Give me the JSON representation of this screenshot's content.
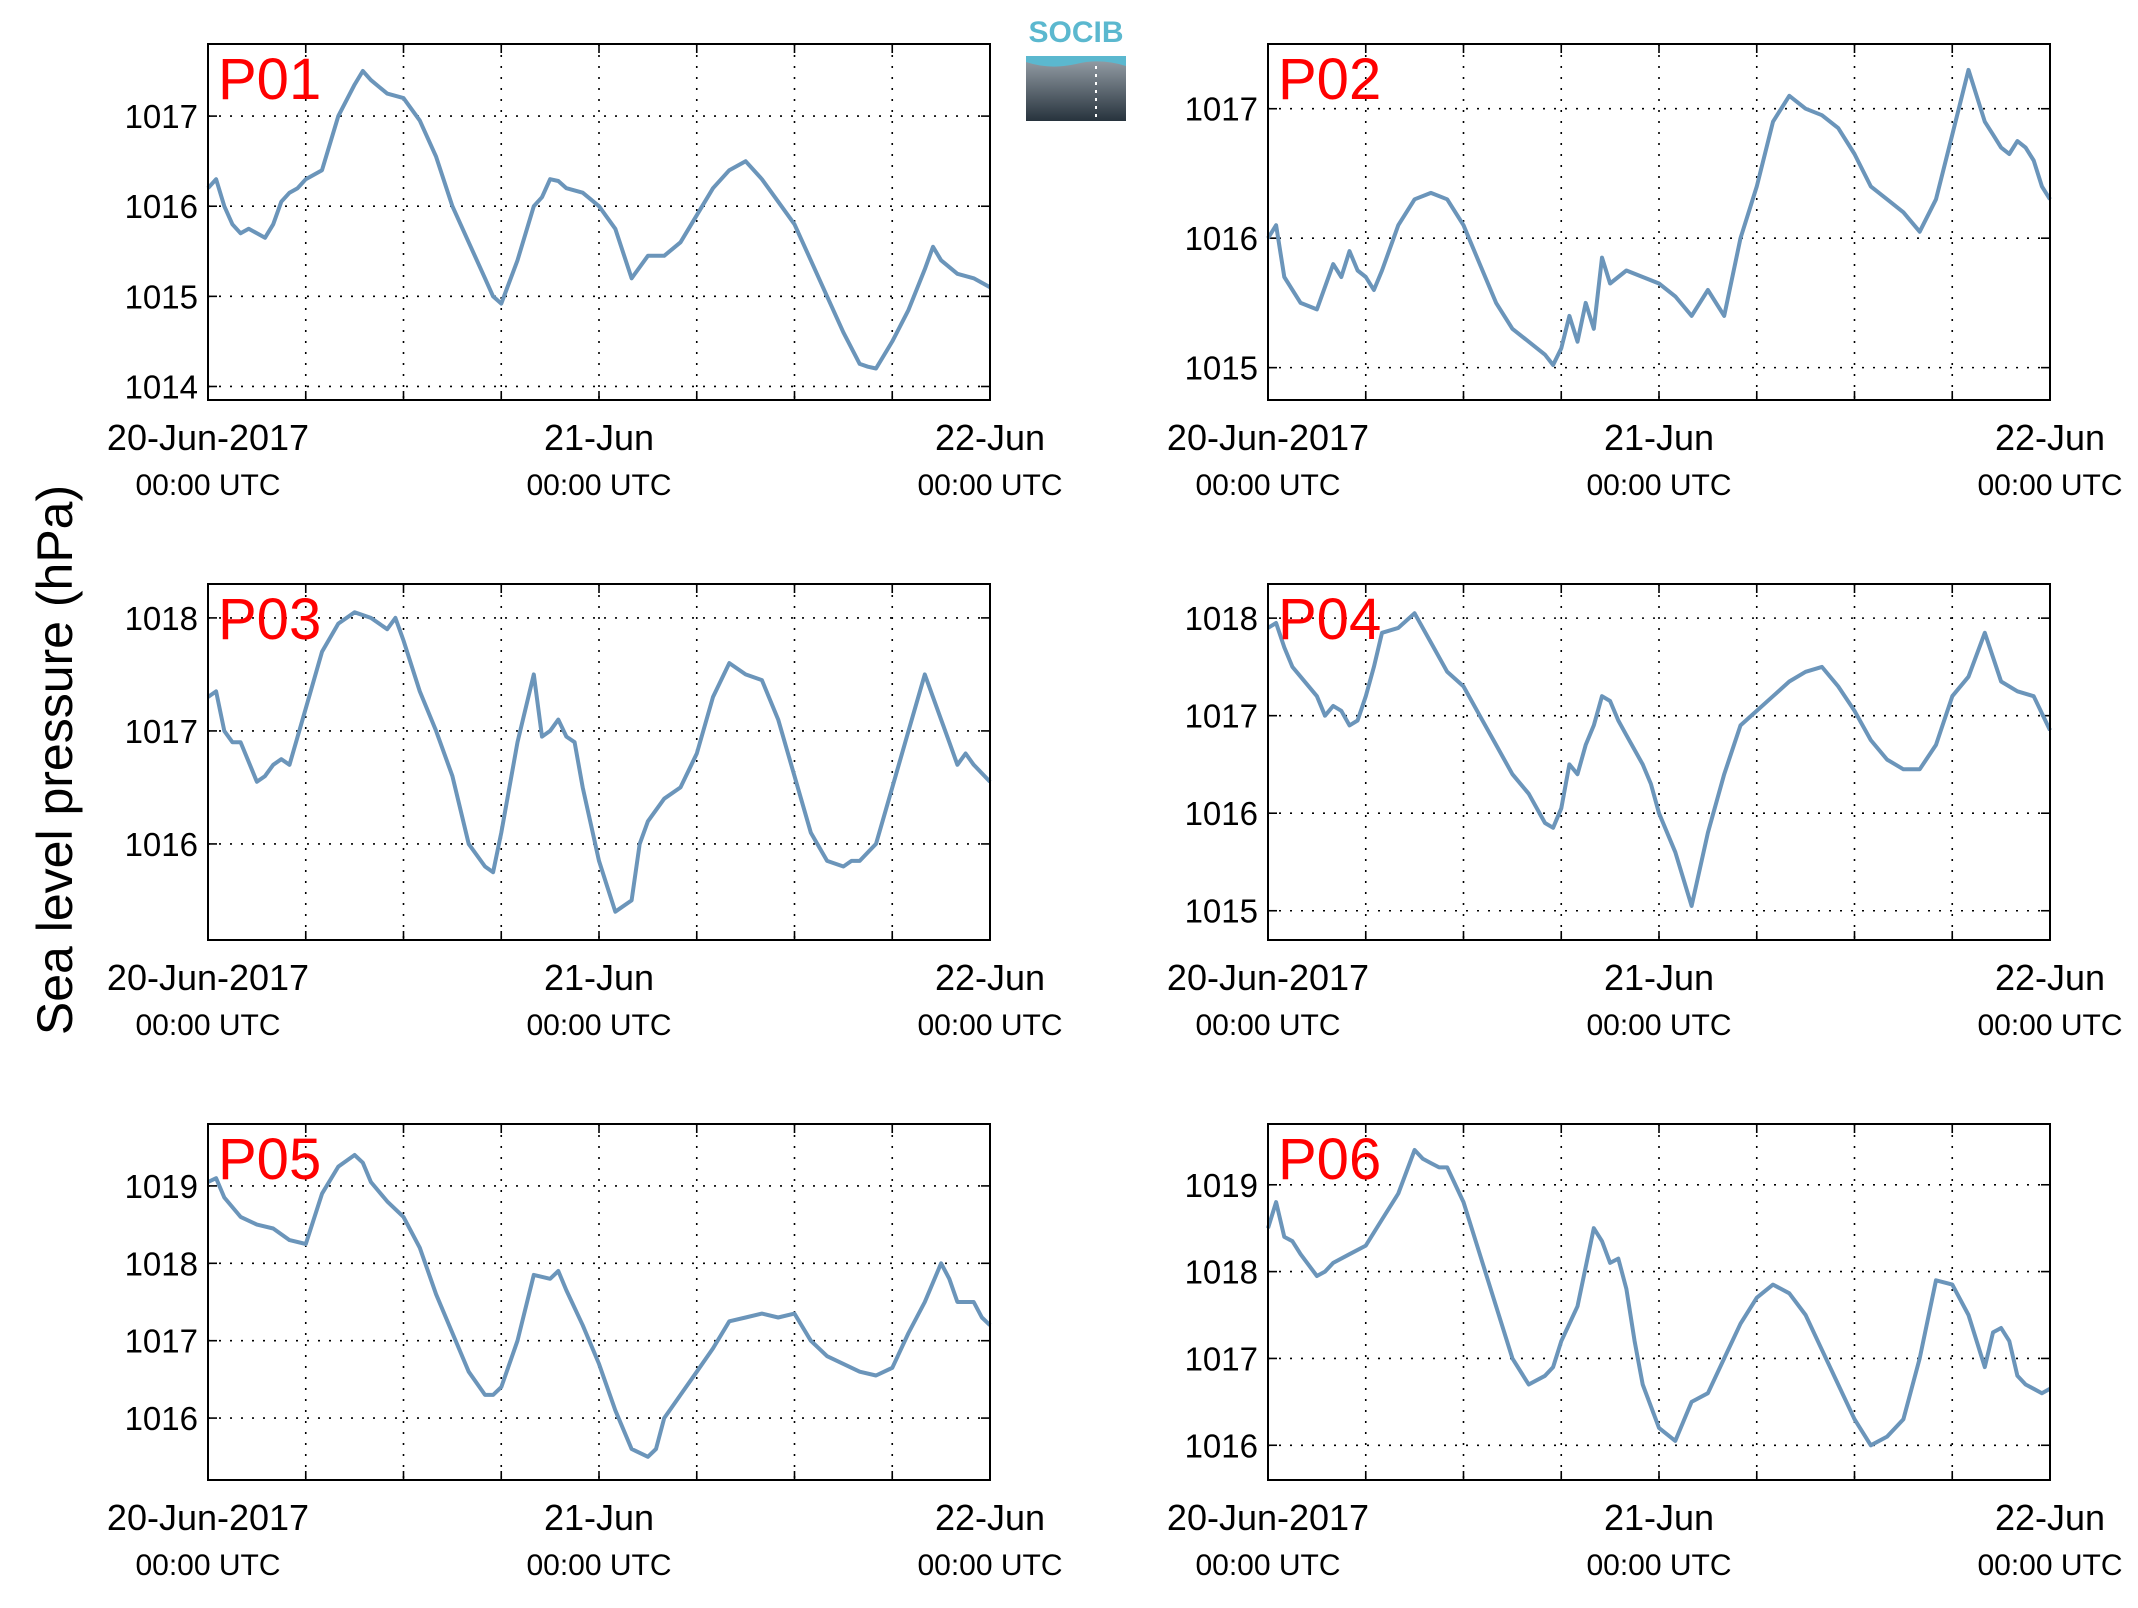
{
  "figure": {
    "ylabel": "Sea level pressure (hPa)",
    "logo_text": "SOCIB"
  },
  "colors": {
    "line": "#6b95ba",
    "panel_label": "#ff0000",
    "grid": "#000000"
  },
  "chart_data": [
    {
      "type": "line",
      "panel_label": "P01",
      "x_unit": "hours since 20-Jun-2017 00:00 UTC",
      "xlim": [
        0,
        48
      ],
      "ylim": [
        1013.85,
        1017.8
      ],
      "yticks": [
        1014,
        1015,
        1016,
        1017
      ],
      "ytick_labels": [
        "1014",
        "1015",
        "1016",
        "1017"
      ],
      "xtick_labels": [
        {
          "date": "20-Jun-2017",
          "time": "00:00 UTC"
        },
        {
          "date": "21-Jun",
          "time": "00:00 UTC"
        },
        {
          "date": "22-Jun",
          "time": "00:00 UTC"
        }
      ],
      "x": [
        0,
        0.5,
        1,
        1.5,
        2,
        2.5,
        3,
        3.5,
        4,
        4.5,
        5,
        5.5,
        6,
        7,
        8,
        9,
        9.5,
        10,
        11,
        12,
        13,
        14,
        15,
        16,
        17,
        17.5,
        18,
        19,
        20,
        20.5,
        21,
        21.5,
        22,
        23,
        24,
        25,
        26,
        27,
        28,
        29,
        30,
        31,
        32,
        33,
        34,
        35,
        36,
        37,
        38,
        39,
        40,
        40.5,
        41,
        42,
        43,
        44,
        44.5,
        45,
        46,
        47,
        48
      ],
      "y": [
        1016.2,
        1016.3,
        1016.0,
        1015.8,
        1015.7,
        1015.75,
        1015.7,
        1015.65,
        1015.8,
        1016.05,
        1016.15,
        1016.2,
        1016.3,
        1016.4,
        1017.0,
        1017.35,
        1017.5,
        1017.4,
        1017.25,
        1017.2,
        1016.95,
        1016.55,
        1016.0,
        1015.6,
        1015.2,
        1015.0,
        1014.92,
        1015.4,
        1016.0,
        1016.1,
        1016.3,
        1016.28,
        1016.2,
        1016.15,
        1016.0,
        1015.75,
        1015.2,
        1015.45,
        1015.45,
        1015.6,
        1015.9,
        1016.2,
        1016.4,
        1016.5,
        1016.3,
        1016.05,
        1015.8,
        1015.4,
        1015.0,
        1014.6,
        1014.25,
        1014.22,
        1014.2,
        1014.5,
        1014.85,
        1015.3,
        1015.55,
        1015.4,
        1015.25,
        1015.2,
        1015.1
      ]
    },
    {
      "type": "line",
      "panel_label": "P02",
      "x_unit": "hours since 20-Jun-2017 00:00 UTC",
      "xlim": [
        0,
        48
      ],
      "ylim": [
        1014.75,
        1017.5
      ],
      "yticks": [
        1015,
        1016,
        1017
      ],
      "ytick_labels": [
        "1015",
        "1016",
        "1017"
      ],
      "xtick_labels": [
        {
          "date": "20-Jun-2017",
          "time": "00:00 UTC"
        },
        {
          "date": "21-Jun",
          "time": "00:00 UTC"
        },
        {
          "date": "22-Jun",
          "time": "00:00 UTC"
        }
      ],
      "x": [
        0,
        0.5,
        1,
        2,
        3,
        4,
        4.5,
        5,
        5.5,
        6,
        6.5,
        7,
        8,
        9,
        10,
        11,
        12,
        13,
        14,
        15,
        16,
        17,
        17.5,
        18,
        18.5,
        19,
        19.5,
        20,
        20.5,
        21,
        22,
        23,
        24,
        25,
        26,
        27,
        28,
        29,
        30,
        31,
        32,
        33,
        34,
        35,
        36,
        37,
        38,
        39,
        40,
        41,
        42,
        43,
        44,
        44.5,
        45,
        45.5,
        46,
        46.5,
        47,
        47.5,
        48
      ],
      "y": [
        1016.0,
        1016.1,
        1015.7,
        1015.5,
        1015.45,
        1015.8,
        1015.7,
        1015.9,
        1015.75,
        1015.7,
        1015.6,
        1015.75,
        1016.1,
        1016.3,
        1016.35,
        1016.3,
        1016.1,
        1015.8,
        1015.5,
        1015.3,
        1015.2,
        1015.1,
        1015.02,
        1015.15,
        1015.4,
        1015.2,
        1015.5,
        1015.3,
        1015.85,
        1015.65,
        1015.75,
        1015.7,
        1015.65,
        1015.55,
        1015.4,
        1015.6,
        1015.4,
        1016.0,
        1016.4,
        1016.9,
        1017.1,
        1017.0,
        1016.95,
        1016.85,
        1016.65,
        1016.4,
        1016.3,
        1016.2,
        1016.05,
        1016.3,
        1016.8,
        1017.3,
        1016.9,
        1016.8,
        1016.7,
        1016.65,
        1016.75,
        1016.7,
        1016.6,
        1016.4,
        1016.3
      ]
    },
    {
      "type": "line",
      "panel_label": "P03",
      "x_unit": "hours since 20-Jun-2017 00:00 UTC",
      "xlim": [
        0,
        48
      ],
      "ylim": [
        1015.15,
        1018.3
      ],
      "yticks": [
        1016,
        1017,
        1018
      ],
      "ytick_labels": [
        "1016",
        "1017",
        "1018"
      ],
      "xtick_labels": [
        {
          "date": "20-Jun-2017",
          "time": "00:00 UTC"
        },
        {
          "date": "21-Jun",
          "time": "00:00 UTC"
        },
        {
          "date": "22-Jun",
          "time": "00:00 UTC"
        }
      ],
      "x": [
        0,
        0.5,
        1,
        1.5,
        2,
        3,
        3.5,
        4,
        4.5,
        5,
        6,
        7,
        8,
        9,
        10,
        11,
        11.5,
        12,
        13,
        14,
        15,
        16,
        17,
        17.5,
        18,
        19,
        20,
        20.5,
        21,
        21.5,
        22,
        22.5,
        23,
        24,
        25,
        26,
        26.5,
        27,
        28,
        29,
        30,
        31,
        32,
        33,
        34,
        35,
        36,
        37,
        38,
        39,
        39.5,
        40,
        41,
        42,
        43,
        44,
        45,
        45.5,
        46,
        46.5,
        47,
        48
      ],
      "y": [
        1017.3,
        1017.35,
        1017.0,
        1016.9,
        1016.9,
        1016.55,
        1016.6,
        1016.7,
        1016.75,
        1016.7,
        1017.2,
        1017.7,
        1017.95,
        1018.05,
        1018.0,
        1017.9,
        1018.0,
        1017.8,
        1017.35,
        1017.0,
        1016.6,
        1016.0,
        1015.8,
        1015.75,
        1016.1,
        1016.9,
        1017.5,
        1016.95,
        1017.0,
        1017.1,
        1016.95,
        1016.9,
        1016.5,
        1015.85,
        1015.4,
        1015.5,
        1016.0,
        1016.2,
        1016.4,
        1016.5,
        1016.8,
        1017.3,
        1017.6,
        1017.5,
        1017.45,
        1017.1,
        1016.6,
        1016.1,
        1015.85,
        1015.8,
        1015.85,
        1015.85,
        1016.0,
        1016.5,
        1017.0,
        1017.5,
        1017.1,
        1016.9,
        1016.7,
        1016.8,
        1016.7,
        1016.55
      ]
    },
    {
      "type": "line",
      "panel_label": "P04",
      "x_unit": "hours since 20-Jun-2017 00:00 UTC",
      "xlim": [
        0,
        48
      ],
      "ylim": [
        1014.7,
        1018.35
      ],
      "yticks": [
        1015,
        1016,
        1017,
        1018
      ],
      "ytick_labels": [
        "1015",
        "1016",
        "1017",
        "1018"
      ],
      "xtick_labels": [
        {
          "date": "20-Jun-2017",
          "time": "00:00 UTC"
        },
        {
          "date": "21-Jun",
          "time": "00:00 UTC"
        },
        {
          "date": "22-Jun",
          "time": "00:00 UTC"
        }
      ],
      "x": [
        0,
        0.5,
        1,
        1.5,
        2,
        3,
        3.5,
        4,
        4.5,
        5,
        5.5,
        6,
        6.5,
        7,
        8,
        9,
        10,
        11,
        12,
        13,
        14,
        15,
        16,
        17,
        17.5,
        18,
        18.5,
        19,
        19.5,
        20,
        20.5,
        21,
        21.5,
        22,
        23,
        23.5,
        24,
        25,
        26,
        27,
        28,
        29,
        30,
        31,
        32,
        33,
        34,
        35,
        36,
        37,
        38,
        39,
        40,
        41,
        42,
        43,
        44,
        44.5,
        45,
        46,
        47,
        48
      ],
      "y": [
        1017.9,
        1017.95,
        1017.7,
        1017.5,
        1017.4,
        1017.2,
        1017.0,
        1017.1,
        1017.05,
        1016.9,
        1016.95,
        1017.2,
        1017.5,
        1017.85,
        1017.9,
        1018.05,
        1017.75,
        1017.45,
        1017.3,
        1017.0,
        1016.7,
        1016.4,
        1016.2,
        1015.9,
        1015.85,
        1016.05,
        1016.5,
        1016.4,
        1016.7,
        1016.9,
        1017.2,
        1017.15,
        1016.95,
        1016.8,
        1016.5,
        1016.3,
        1016.0,
        1015.6,
        1015.05,
        1015.8,
        1016.4,
        1016.9,
        1017.05,
        1017.2,
        1017.35,
        1017.45,
        1017.5,
        1017.3,
        1017.05,
        1016.75,
        1016.55,
        1016.45,
        1016.45,
        1016.7,
        1017.2,
        1017.4,
        1017.85,
        1017.6,
        1017.35,
        1017.25,
        1017.2,
        1016.85
      ]
    },
    {
      "type": "line",
      "panel_label": "P05",
      "x_unit": "hours since 20-Jun-2017 00:00 UTC",
      "xlim": [
        0,
        48
      ],
      "ylim": [
        1015.2,
        1019.8
      ],
      "yticks": [
        1016,
        1017,
        1018,
        1019
      ],
      "ytick_labels": [
        "1016",
        "1017",
        "1018",
        "1019"
      ],
      "xtick_labels": [
        {
          "date": "20-Jun-2017",
          "time": "00:00 UTC"
        },
        {
          "date": "21-Jun",
          "time": "00:00 UTC"
        },
        {
          "date": "22-Jun",
          "time": "00:00 UTC"
        }
      ],
      "x": [
        0,
        0.5,
        1,
        2,
        3,
        4,
        5,
        6,
        7,
        8,
        9,
        9.5,
        10,
        11,
        12,
        13,
        14,
        15,
        16,
        17,
        17.5,
        18,
        19,
        20,
        21,
        21.5,
        22,
        23,
        24,
        25,
        26,
        27,
        27.5,
        28,
        29,
        30,
        31,
        32,
        33,
        34,
        35,
        36,
        37,
        38,
        39,
        40,
        41,
        42,
        43,
        44,
        45,
        45.5,
        46,
        47,
        47.5,
        48
      ],
      "y": [
        1019.05,
        1019.1,
        1018.85,
        1018.6,
        1018.5,
        1018.45,
        1018.3,
        1018.25,
        1018.9,
        1019.25,
        1019.4,
        1019.3,
        1019.05,
        1018.8,
        1018.6,
        1018.2,
        1017.6,
        1017.1,
        1016.6,
        1016.3,
        1016.3,
        1016.4,
        1017.0,
        1017.85,
        1017.8,
        1017.9,
        1017.65,
        1017.2,
        1016.7,
        1016.1,
        1015.6,
        1015.5,
        1015.6,
        1016.0,
        1016.3,
        1016.6,
        1016.9,
        1017.25,
        1017.3,
        1017.35,
        1017.3,
        1017.35,
        1017.0,
        1016.8,
        1016.7,
        1016.6,
        1016.55,
        1016.65,
        1017.1,
        1017.5,
        1018.0,
        1017.8,
        1017.5,
        1017.5,
        1017.3,
        1017.2
      ]
    },
    {
      "type": "line",
      "panel_label": "P06",
      "x_unit": "hours since 20-Jun-2017 00:00 UTC",
      "xlim": [
        0,
        48
      ],
      "ylim": [
        1015.6,
        1019.7
      ],
      "yticks": [
        1016,
        1017,
        1018,
        1019
      ],
      "ytick_labels": [
        "1016",
        "1017",
        "1018",
        "1019"
      ],
      "xtick_labels": [
        {
          "date": "20-Jun-2017",
          "time": "00:00 UTC"
        },
        {
          "date": "21-Jun",
          "time": "00:00 UTC"
        },
        {
          "date": "22-Jun",
          "time": "00:00 UTC"
        }
      ],
      "x": [
        0,
        0.5,
        1,
        1.5,
        2,
        3,
        3.5,
        4,
        5,
        6,
        7,
        8,
        9,
        9.5,
        10,
        10.5,
        11,
        12,
        13,
        14,
        15,
        16,
        17,
        17.5,
        18,
        19,
        20,
        20.5,
        21,
        21.5,
        22,
        22.5,
        23,
        24,
        25,
        26,
        27,
        28,
        29,
        30,
        31,
        32,
        33,
        34,
        35,
        36,
        37,
        38,
        39,
        40,
        41,
        42,
        43,
        44,
        44.5,
        45,
        45.5,
        46,
        46.5,
        47,
        47.5,
        48
      ],
      "y": [
        1018.5,
        1018.8,
        1018.4,
        1018.35,
        1018.2,
        1017.95,
        1018.0,
        1018.1,
        1018.2,
        1018.3,
        1018.6,
        1018.9,
        1019.4,
        1019.3,
        1019.25,
        1019.2,
        1019.2,
        1018.8,
        1018.2,
        1017.6,
        1017.0,
        1016.7,
        1016.8,
        1016.9,
        1017.2,
        1017.6,
        1018.5,
        1018.35,
        1018.1,
        1018.15,
        1017.8,
        1017.2,
        1016.7,
        1016.2,
        1016.05,
        1016.5,
        1016.6,
        1017.0,
        1017.4,
        1017.7,
        1017.85,
        1017.75,
        1017.5,
        1017.1,
        1016.7,
        1016.3,
        1016.0,
        1016.1,
        1016.3,
        1017.0,
        1017.9,
        1017.85,
        1017.5,
        1016.9,
        1017.3,
        1017.35,
        1017.2,
        1016.8,
        1016.7,
        1016.65,
        1016.6,
        1016.65
      ]
    }
  ]
}
